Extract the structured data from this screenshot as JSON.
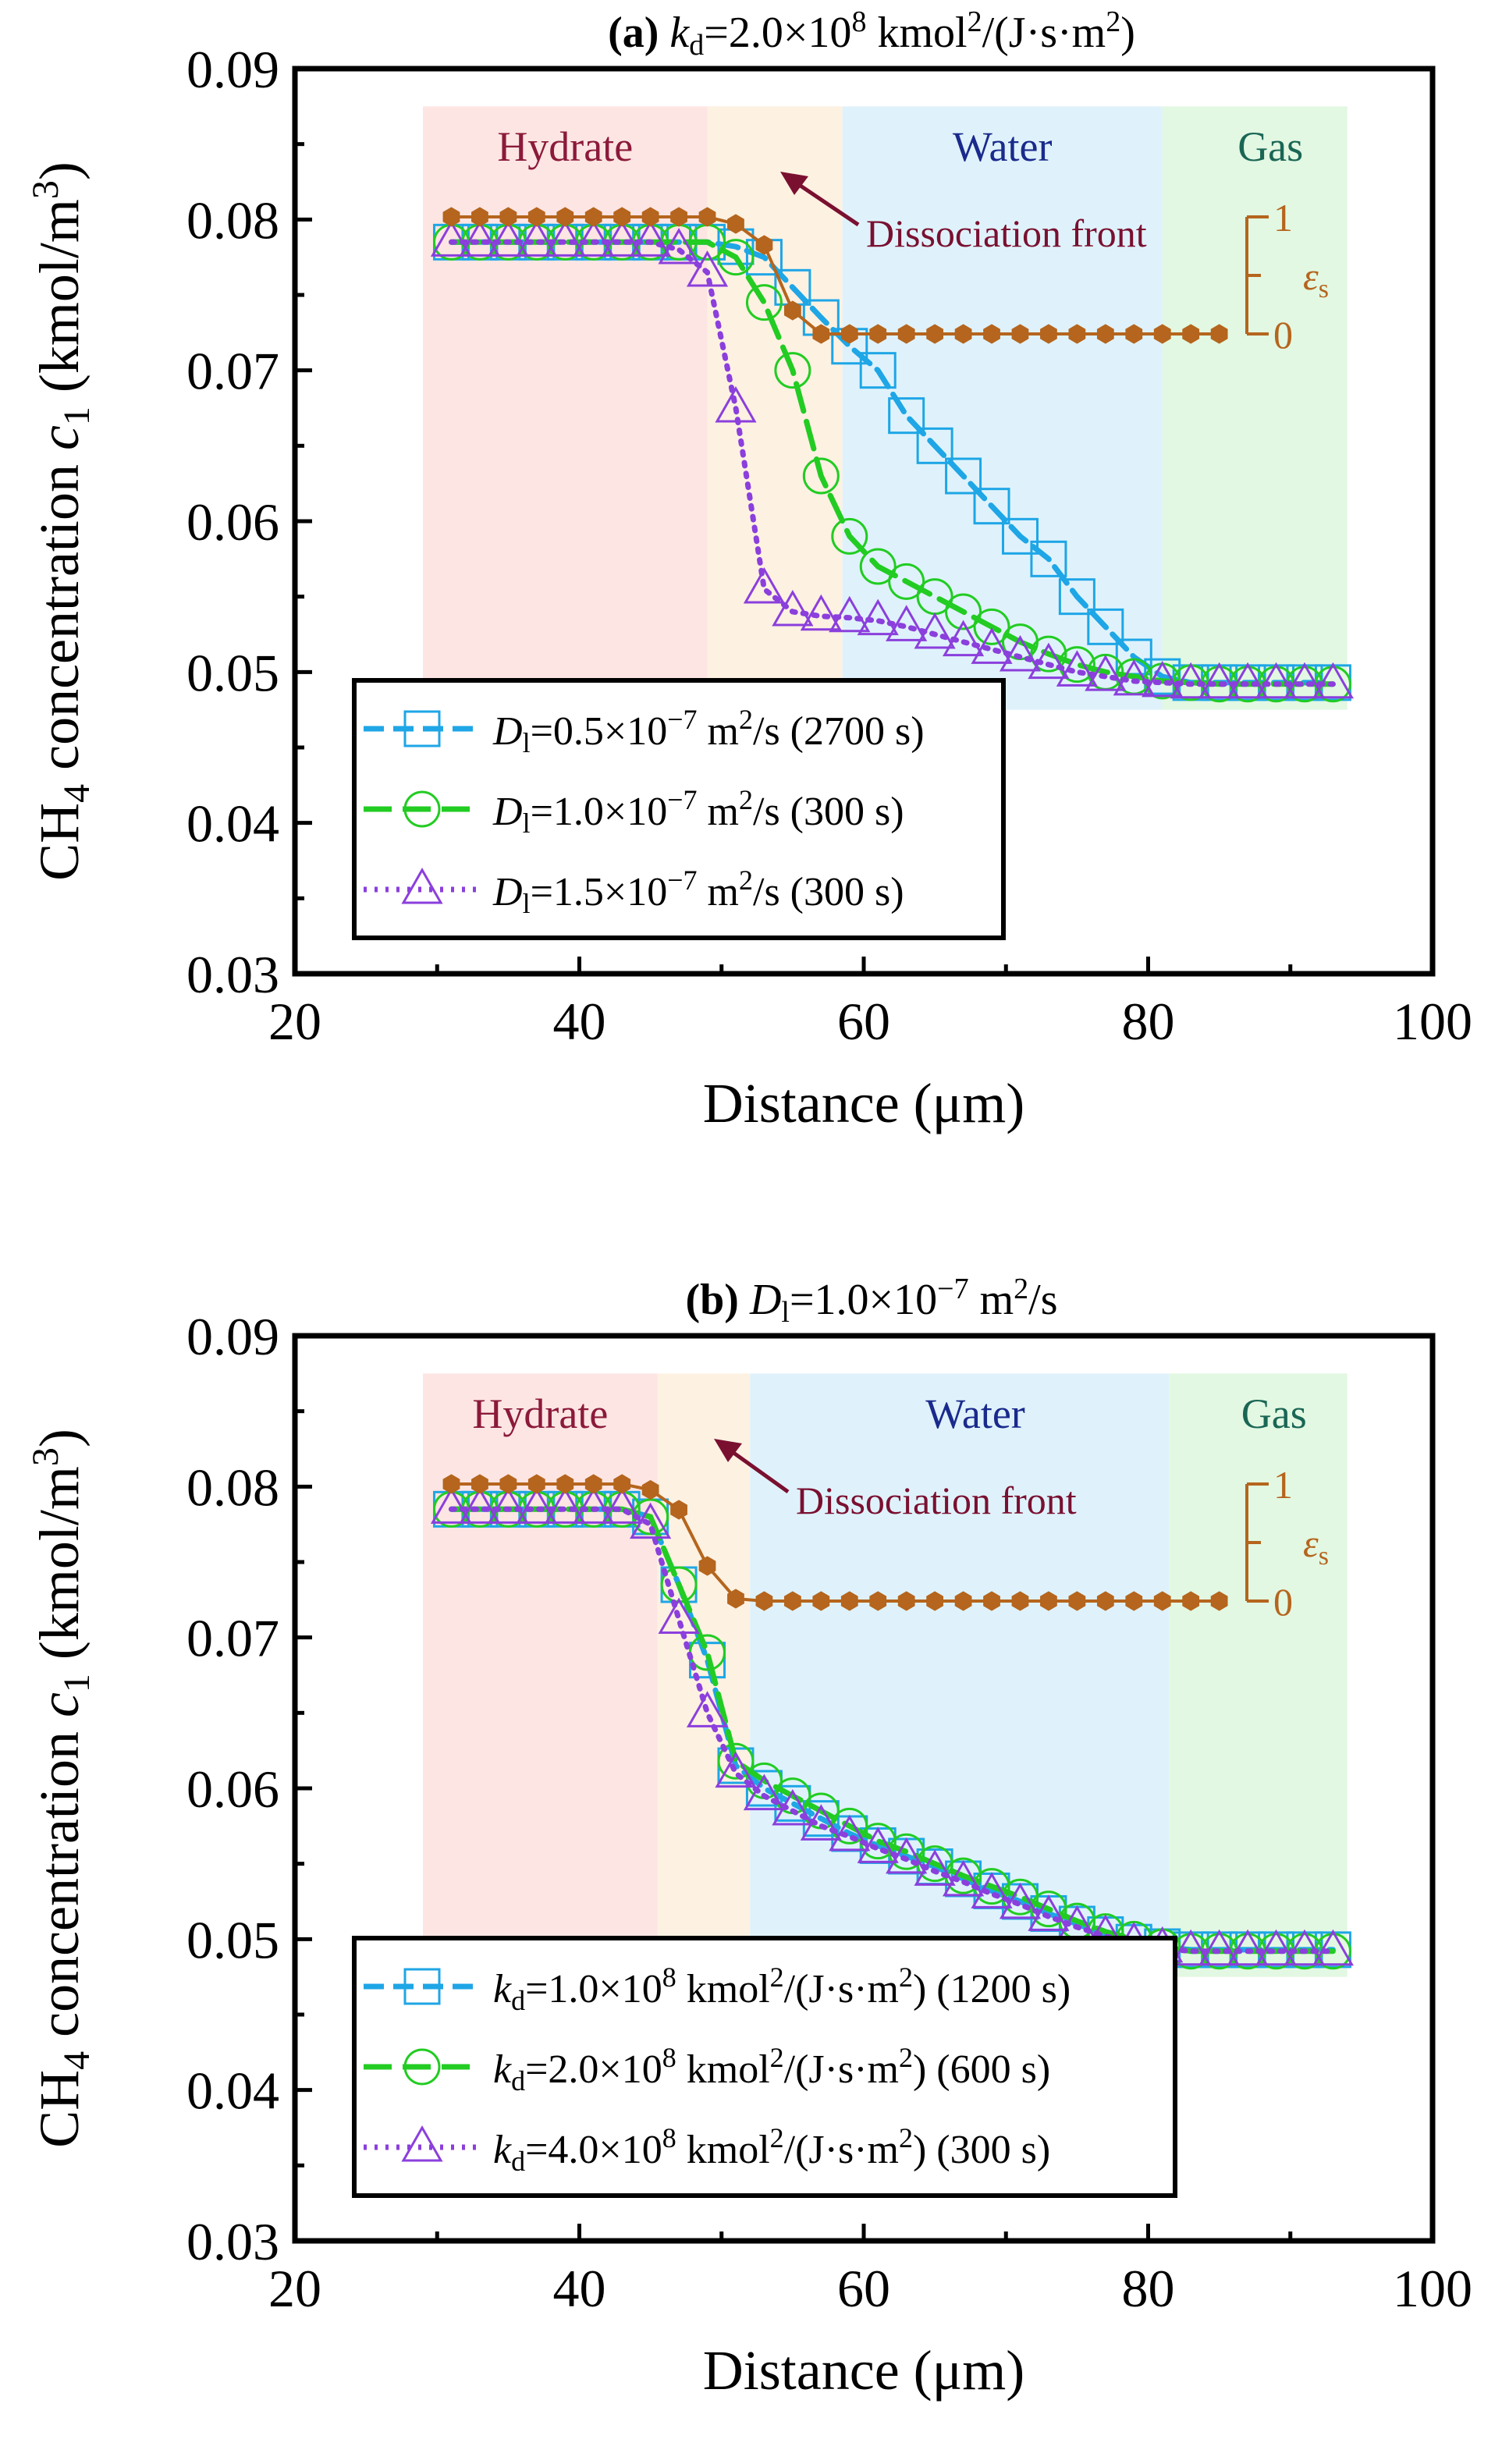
{
  "colors": {
    "series1": "#1ea6e6",
    "series2": "#22cc22",
    "series3": "#8b3fdc",
    "eps": "#b5651d",
    "hydrate_bg": "#fde5e3",
    "front_bg": "#fdf1e2",
    "water_bg": "#dff2fb",
    "gas_bg": "#e2f8e2",
    "hydrate_text": "#8b1a3a",
    "water_text": "#1a2a8c",
    "gas_text": "#1a6655",
    "front_text": "#7a1030"
  },
  "common": {
    "xlabel": "Distance (μm)",
    "ylabel": "CH₄ concentration c₁ (kmol/m³)",
    "xticks": [
      "20",
      "40",
      "60",
      "80",
      "100"
    ],
    "yticks": [
      "0.03",
      "0.04",
      "0.05",
      "0.06",
      "0.07",
      "0.08",
      "0.09"
    ],
    "region_hydrate": "Hydrate",
    "region_water": "Water",
    "region_gas": "Gas",
    "front_label": "Dissociation front",
    "eps_label": "εs",
    "eps_tick_top": "1",
    "eps_tick_bottom": "0"
  },
  "chart_data": [
    {
      "type": "line",
      "title": "(a)  kd=2.0×10⁸ kmol²/(J·s·m²)",
      "xlabel": "Distance (μm)",
      "ylabel": "CH₄ concentration c₁ (kmol/m³)",
      "xlim": [
        20,
        100
      ],
      "ylim": [
        0.03,
        0.09
      ],
      "grid": false,
      "legend_position": "bottom-left",
      "regions": {
        "hydrate": [
          29,
          49
        ],
        "front": [
          49,
          58.5
        ],
        "water": [
          58.5,
          81
        ],
        "gas": [
          81,
          94
        ]
      },
      "series": [
        {
          "name": "Dl=0.5×10⁻⁷ m²/s (2700 s)",
          "marker": "square",
          "dash": "dash",
          "x": [
            31,
            33,
            35,
            37,
            39,
            41,
            43,
            45,
            47,
            49,
            51,
            53,
            55,
            57,
            59,
            61,
            63,
            65,
            67,
            69,
            71,
            73,
            75,
            77,
            79,
            81,
            83,
            85,
            87,
            89,
            91,
            93
          ],
          "y": [
            0.0785,
            0.0785,
            0.0785,
            0.0785,
            0.0785,
            0.0785,
            0.0785,
            0.0785,
            0.0785,
            0.0785,
            0.0782,
            0.0775,
            0.0755,
            0.0735,
            0.0716,
            0.07,
            0.067,
            0.065,
            0.063,
            0.061,
            0.059,
            0.0575,
            0.055,
            0.053,
            0.051,
            0.0497,
            0.0493,
            0.0493,
            0.0493,
            0.0493,
            0.0493,
            0.0493
          ]
        },
        {
          "name": "Dl=1.0×10⁻⁷ m²/s (300 s)",
          "marker": "circle",
          "dash": "longdash",
          "x": [
            31,
            33,
            35,
            37,
            39,
            41,
            43,
            45,
            47,
            49,
            51,
            53,
            55,
            57,
            59,
            61,
            63,
            65,
            67,
            69,
            71,
            73,
            75,
            77,
            79,
            81,
            83,
            85,
            87,
            89,
            91,
            93
          ],
          "y": [
            0.0785,
            0.0785,
            0.0785,
            0.0785,
            0.0785,
            0.0785,
            0.0785,
            0.0785,
            0.0785,
            0.0785,
            0.0775,
            0.0745,
            0.07,
            0.063,
            0.059,
            0.057,
            0.056,
            0.055,
            0.054,
            0.053,
            0.052,
            0.0512,
            0.0505,
            0.05,
            0.0497,
            0.0494,
            0.0493,
            0.0492,
            0.0492,
            0.0492,
            0.0492,
            0.0492
          ]
        },
        {
          "name": "Dl=1.5×10⁻⁷ m²/s (300 s)",
          "marker": "triangle",
          "dash": "dot",
          "x": [
            31,
            33,
            35,
            37,
            39,
            41,
            43,
            45,
            47,
            49,
            51,
            53,
            55,
            57,
            59,
            61,
            63,
            65,
            67,
            69,
            71,
            73,
            75,
            77,
            79,
            81,
            83,
            85,
            87,
            89,
            91,
            93
          ],
          "y": [
            0.0785,
            0.0785,
            0.0785,
            0.0785,
            0.0785,
            0.0785,
            0.0785,
            0.0785,
            0.078,
            0.0765,
            0.0675,
            0.0555,
            0.054,
            0.0537,
            0.0536,
            0.0534,
            0.053,
            0.0525,
            0.052,
            0.0515,
            0.051,
            0.0505,
            0.05,
            0.0497,
            0.0494,
            0.0493,
            0.0492,
            0.0492,
            0.0492,
            0.0492,
            0.0492,
            0.0492
          ]
        },
        {
          "name": "εs",
          "marker": "hexagon",
          "dash": "solid",
          "axis": "secondary",
          "x": [
            31,
            33,
            35,
            37,
            39,
            41,
            43,
            45,
            47,
            49,
            51,
            53,
            55,
            57,
            59,
            61,
            63,
            65,
            67,
            69,
            71,
            73,
            75,
            77,
            79,
            81,
            83,
            85
          ],
          "y": [
            1,
            1,
            1,
            1,
            1,
            1,
            1,
            1,
            1,
            1,
            0.94,
            0.76,
            0.2,
            0,
            0,
            0,
            0,
            0,
            0,
            0,
            0,
            0,
            0,
            0,
            0,
            0,
            0,
            0
          ]
        }
      ]
    },
    {
      "type": "line",
      "title": "(b)  Dl=1.0×10⁻⁷ m²/s",
      "xlabel": "Distance (μm)",
      "ylabel": "CH₄ concentration c₁ (kmol/m³)",
      "xlim": [
        20,
        100
      ],
      "ylim": [
        0.03,
        0.09
      ],
      "grid": false,
      "legend_position": "bottom-left",
      "regions": {
        "hydrate": [
          29,
          45.5
        ],
        "front": [
          45.5,
          52
        ],
        "water": [
          52,
          81.5
        ],
        "gas": [
          81.5,
          94
        ]
      },
      "series": [
        {
          "name": "kd=1.0×10⁸ kmol²/(J·s·m²) (1200 s)",
          "marker": "square",
          "dash": "dash",
          "x": [
            31,
            33,
            35,
            37,
            39,
            41,
            43,
            45,
            47,
            49,
            51,
            53,
            55,
            57,
            59,
            61,
            63,
            65,
            67,
            69,
            71,
            73,
            75,
            77,
            79,
            81,
            83,
            85,
            87,
            89,
            91,
            93
          ],
          "y": [
            0.0785,
            0.0785,
            0.0785,
            0.0785,
            0.0785,
            0.0785,
            0.0785,
            0.078,
            0.0735,
            0.0685,
            0.0615,
            0.06,
            0.059,
            0.058,
            0.057,
            0.0562,
            0.0555,
            0.0548,
            0.054,
            0.0532,
            0.0525,
            0.0517,
            0.051,
            0.0503,
            0.0498,
            0.0495,
            0.0493,
            0.0493,
            0.0493,
            0.0493,
            0.0493,
            0.0493
          ]
        },
        {
          "name": "kd=2.0×10⁸ kmol²/(J·s·m²) (600 s)",
          "marker": "circle",
          "dash": "longdash",
          "x": [
            31,
            33,
            35,
            37,
            39,
            41,
            43,
            45,
            47,
            49,
            51,
            53,
            55,
            57,
            59,
            61,
            63,
            65,
            67,
            69,
            71,
            73,
            75,
            77,
            79,
            81,
            83,
            85,
            87,
            89,
            91,
            93
          ],
          "y": [
            0.0785,
            0.0785,
            0.0785,
            0.0785,
            0.0785,
            0.0785,
            0.0785,
            0.078,
            0.0735,
            0.069,
            0.0618,
            0.0605,
            0.0595,
            0.0585,
            0.0575,
            0.0565,
            0.0558,
            0.055,
            0.0542,
            0.0535,
            0.0528,
            0.052,
            0.0512,
            0.0505,
            0.05,
            0.0495,
            0.0492,
            0.0492,
            0.0492,
            0.0492,
            0.0492,
            0.0492
          ]
        },
        {
          "name": "kd=4.0×10⁸ kmol²/(J·s·m²) (300 s)",
          "marker": "triangle",
          "dash": "dot",
          "x": [
            31,
            33,
            35,
            37,
            39,
            41,
            43,
            45,
            47,
            49,
            51,
            53,
            55,
            57,
            59,
            61,
            63,
            65,
            67,
            69,
            71,
            73,
            75,
            77,
            79,
            81,
            83,
            85,
            87,
            89,
            91,
            93
          ],
          "y": [
            0.0785,
            0.0785,
            0.0785,
            0.0785,
            0.0785,
            0.0785,
            0.0785,
            0.0775,
            0.0712,
            0.065,
            0.061,
            0.0595,
            0.0585,
            0.0575,
            0.0568,
            0.056,
            0.0553,
            0.0545,
            0.0538,
            0.053,
            0.0523,
            0.0515,
            0.0508,
            0.0502,
            0.0497,
            0.0494,
            0.0492,
            0.0492,
            0.0492,
            0.0492,
            0.0492,
            0.0492
          ]
        },
        {
          "name": "εs",
          "marker": "hexagon",
          "dash": "solid",
          "axis": "secondary",
          "x": [
            31,
            33,
            35,
            37,
            39,
            41,
            43,
            45,
            47,
            49,
            51,
            53,
            55,
            57,
            59,
            61,
            63,
            65,
            67,
            69,
            71,
            73,
            75,
            77,
            79,
            81,
            83,
            85
          ],
          "y": [
            1,
            1,
            1,
            1,
            1,
            1,
            1,
            0.95,
            0.78,
            0.3,
            0.02,
            0,
            0,
            0,
            0,
            0,
            0,
            0,
            0,
            0,
            0,
            0,
            0,
            0,
            0,
            0,
            0,
            0
          ]
        }
      ]
    }
  ]
}
